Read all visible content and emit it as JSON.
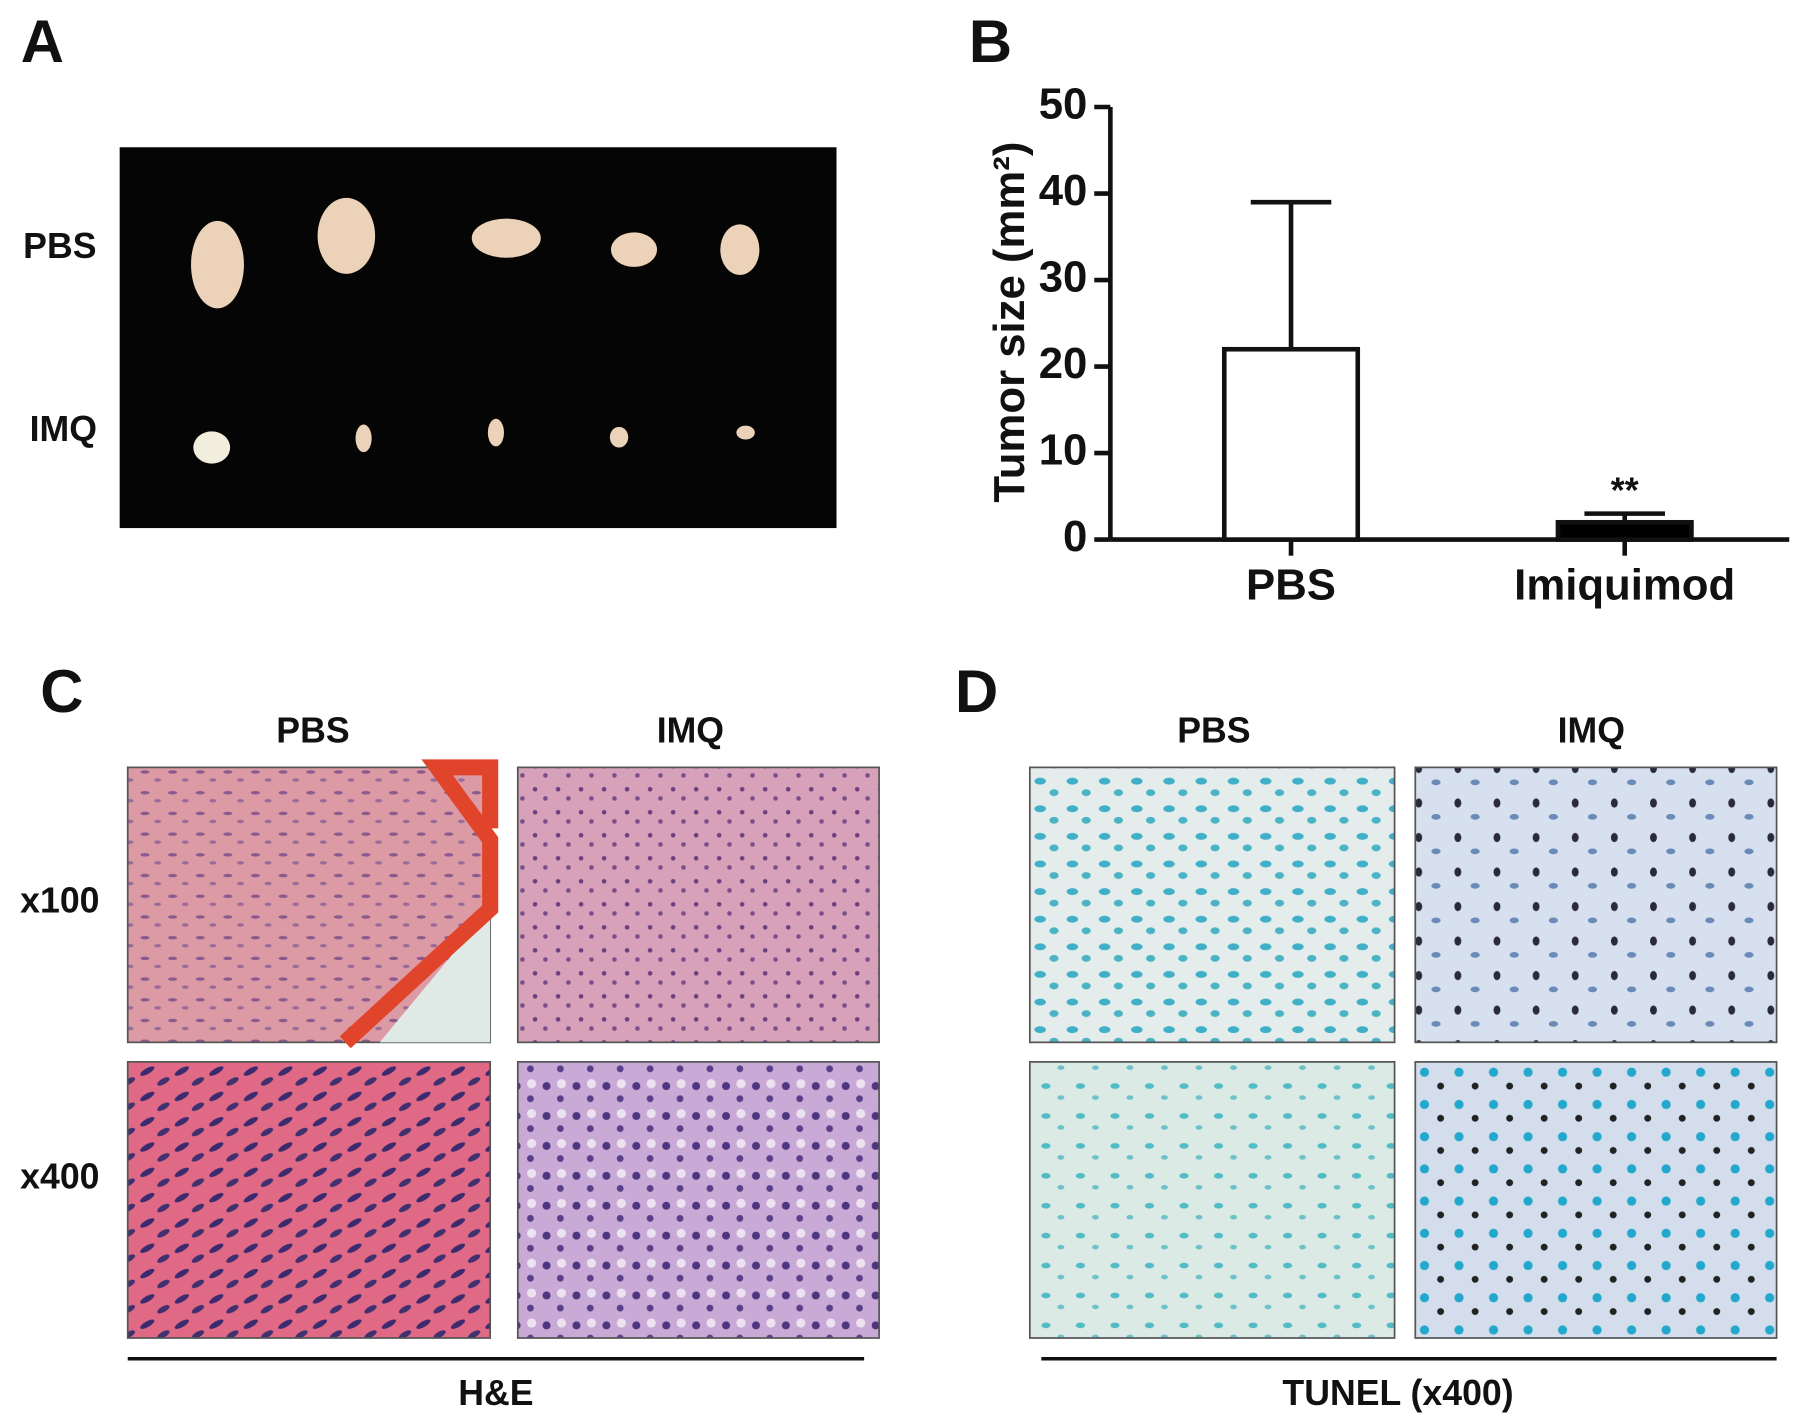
{
  "panel_a": {
    "label": "A",
    "rows": [
      "PBS",
      "IMQ"
    ]
  },
  "chart_data": {
    "type": "bar",
    "label": "B",
    "ylabel": "Tumor size (mm²)",
    "categories": [
      "PBS",
      "Imiquimod"
    ],
    "values": [
      22,
      2
    ],
    "errors": [
      17,
      1
    ],
    "colors": [
      "#ffffff",
      "#000000"
    ],
    "annotation": "**",
    "ylim": [
      0,
      50
    ],
    "yticks": [
      0,
      10,
      20,
      30,
      40,
      50
    ]
  },
  "panel_c": {
    "label": "C",
    "columns": [
      "PBS",
      "IMQ"
    ],
    "rows": [
      "x100",
      "x400"
    ],
    "caption": "H&E"
  },
  "panel_d": {
    "label": "D",
    "columns": [
      "PBS",
      "IMQ"
    ],
    "caption": "TUNEL (x400)"
  }
}
